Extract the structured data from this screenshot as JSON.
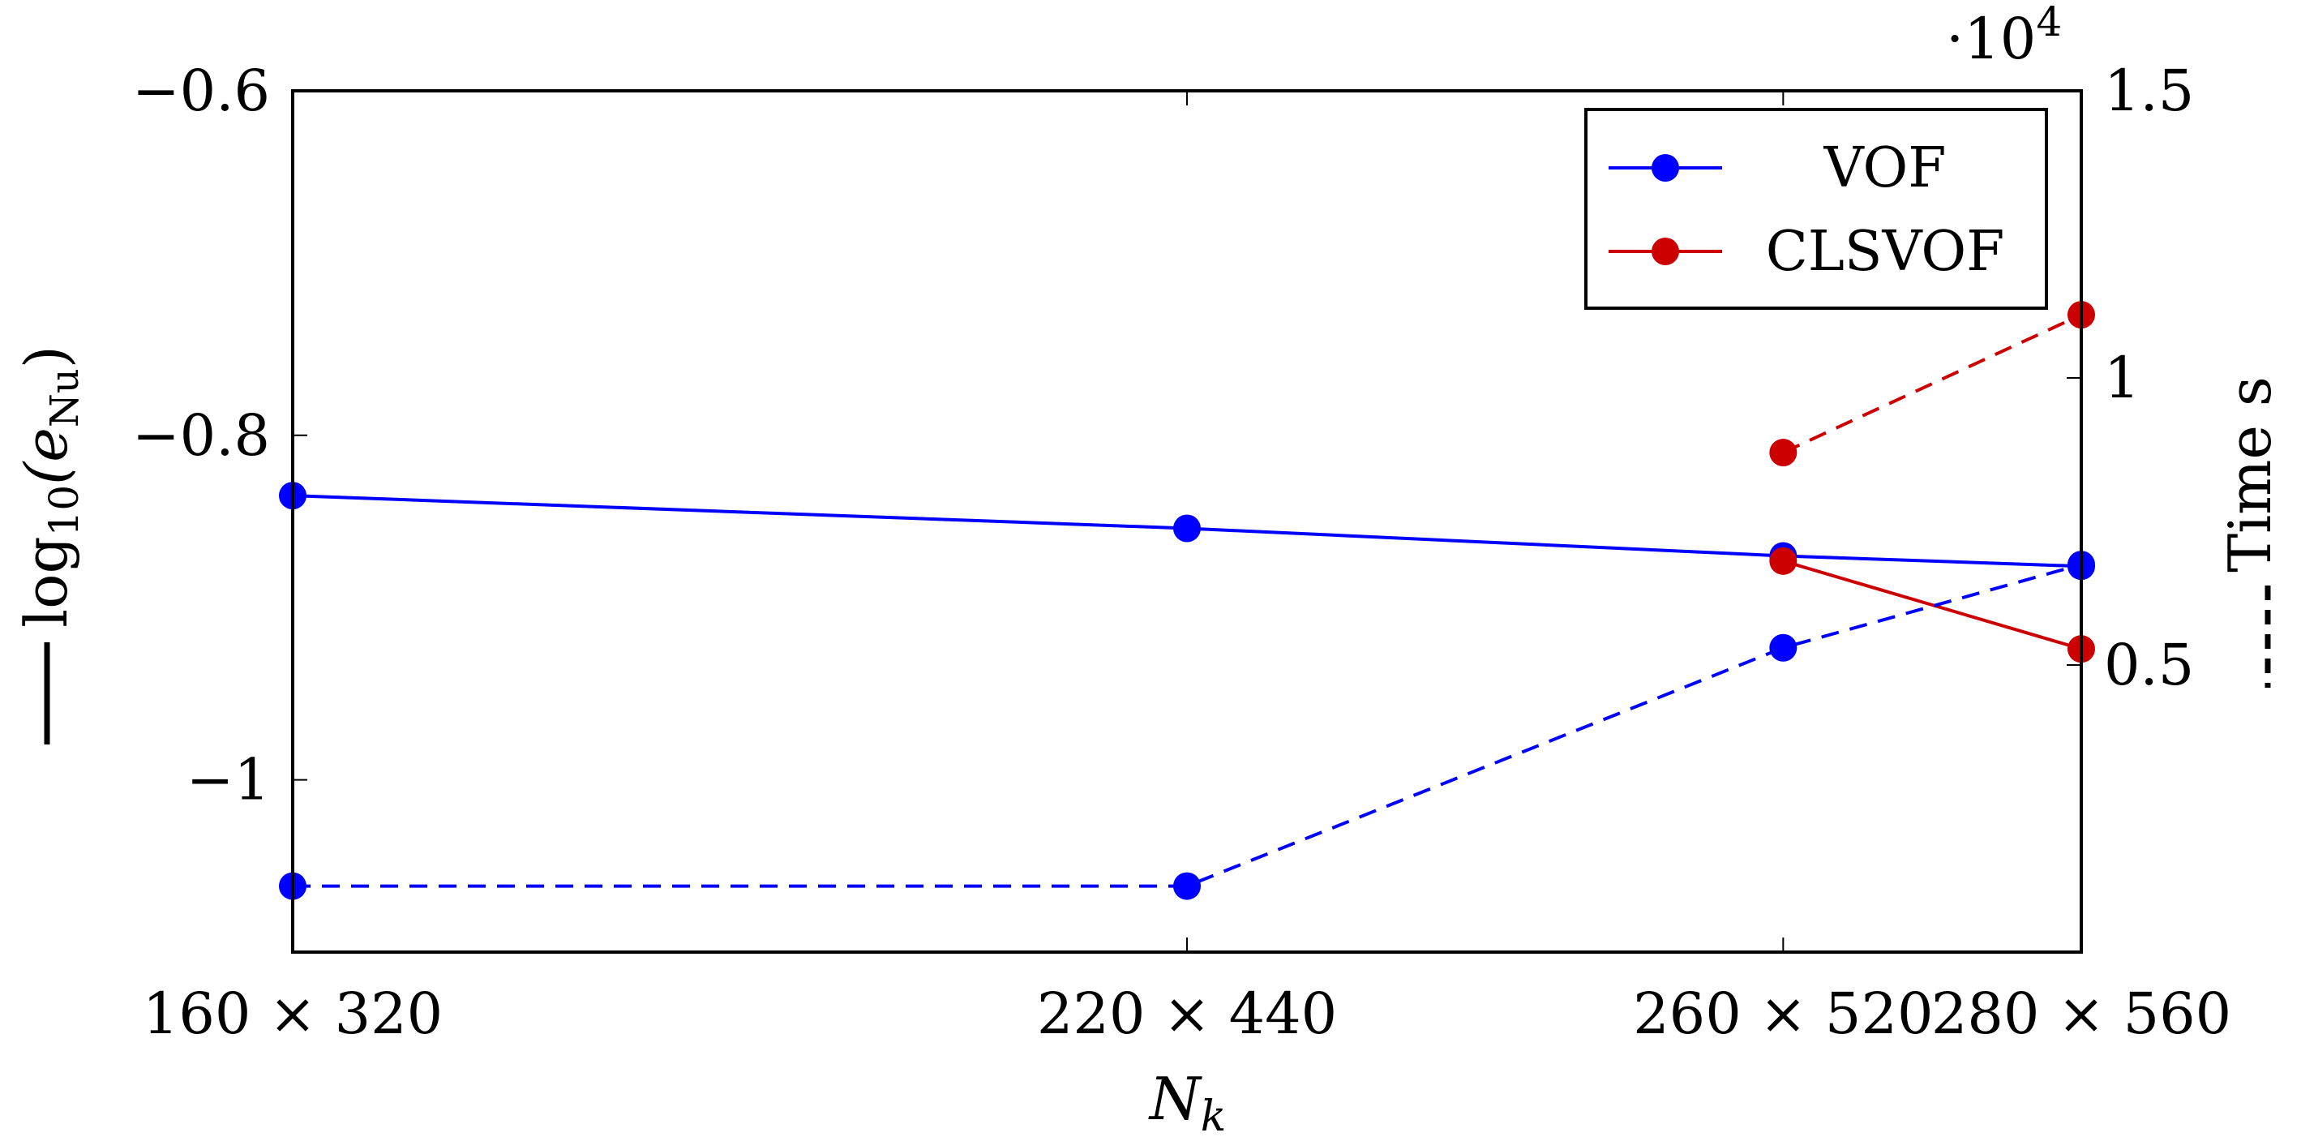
{
  "chart_data": {
    "type": "line",
    "x": [
      160,
      220,
      260,
      280
    ],
    "categories": [
      "160 × 320",
      "220 × 440",
      "260 × 520",
      "280 × 560"
    ],
    "xlabel": "N",
    "xlabel_sub": "k",
    "ylabel_left": "log",
    "ylabel_left_sub": "10",
    "ylabel_left_arg": "(e",
    "ylabel_left_arg_sub": "Nu",
    "ylabel_left_close": ")",
    "ylabel_right": "Time s",
    "ylim_left": [
      -1.1,
      -0.6
    ],
    "ylim_right": [
      0,
      15000
    ],
    "yticks_left": [
      -0.6,
      -0.8,
      -1
    ],
    "yticks_left_labels": [
      "−0.6",
      "−0.8",
      "−1"
    ],
    "yticks_right": [
      5000,
      10000,
      15000
    ],
    "yticks_right_labels": [
      "0.5",
      "1",
      "1.5"
    ],
    "right_axis_multiplier": "·10",
    "right_axis_multiplier_exp": "4",
    "legend_position": "top-right",
    "series": [
      {
        "name": "VOF",
        "axis": "left",
        "style": "solid",
        "color": "#0000ff",
        "x": [
          160,
          220,
          260,
          280
        ],
        "values": [
          -0.835,
          -0.854,
          -0.87,
          -0.876
        ]
      },
      {
        "name": "CLSVOF",
        "axis": "left",
        "style": "solid",
        "color": "#cc0000",
        "x": [
          260,
          280
        ],
        "values": [
          -0.873,
          -0.924
        ]
      },
      {
        "axis": "right",
        "style": "dashed",
        "color": "#0000ff",
        "x": [
          160,
          220,
          260,
          280
        ],
        "values": [
          1150,
          1150,
          5300,
          6750
        ]
      },
      {
        "axis": "right",
        "style": "dashed",
        "color": "#cc0000",
        "x": [
          260,
          280
        ],
        "values": [
          8700,
          11100
        ]
      }
    ],
    "legend": [
      {
        "label": "VOF",
        "color": "#0000ff"
      },
      {
        "label": "CLSVOF",
        "color": "#cc0000"
      }
    ]
  }
}
